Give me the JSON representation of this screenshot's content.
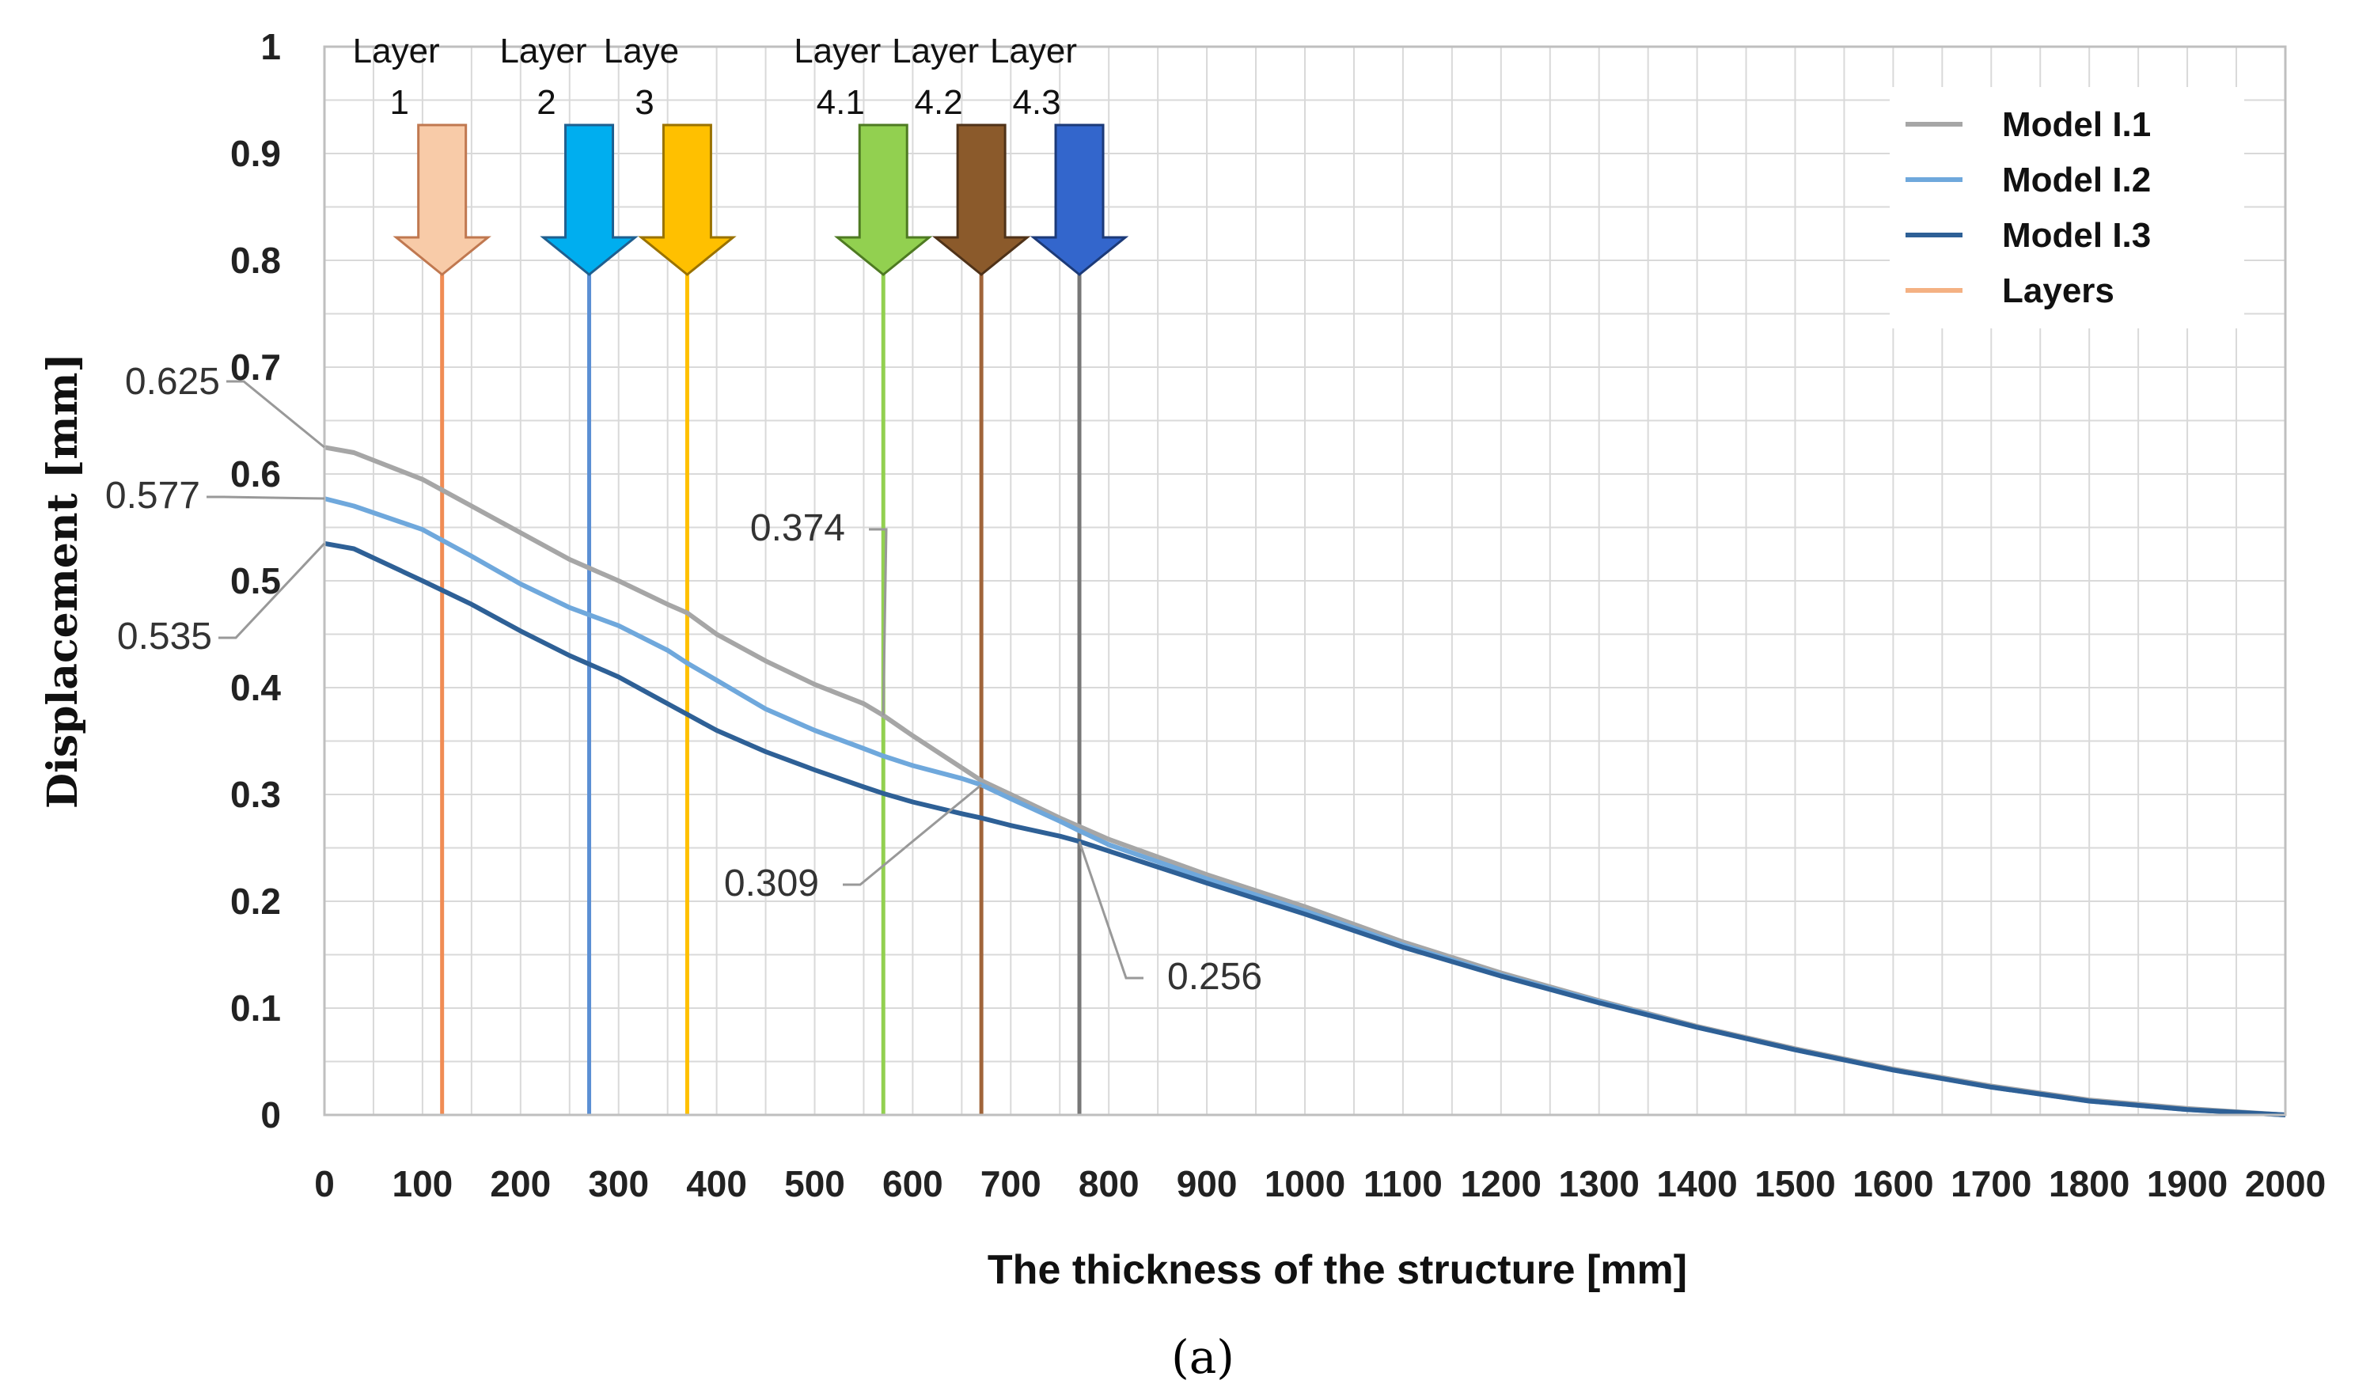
{
  "chart_data": {
    "type": "line",
    "xlabel": "The thickness of the structure  [mm]",
    "ylabel": "Displacement [mm]",
    "caption": "(a)",
    "xlim": [
      0,
      2000
    ],
    "ylim": [
      0,
      1
    ],
    "x_ticks": [
      "0",
      "100",
      "200",
      "300",
      "400",
      "500",
      "600",
      "700",
      "800",
      "900",
      "1000",
      "1100",
      "1200",
      "1300",
      "1400",
      "1500",
      "1600",
      "1700",
      "1800",
      "1900",
      "2000"
    ],
    "y_ticks": [
      "0",
      "0.1",
      "0.2",
      "0.3",
      "0.4",
      "0.5",
      "0.6",
      "0.7",
      "0.8",
      "0.9",
      "1"
    ],
    "grid": true,
    "legend_position": "top-right",
    "series": [
      {
        "name": "Model I.1",
        "color": "#a6a6a6",
        "x": [
          0,
          30,
          100,
          150,
          200,
          250,
          300,
          350,
          370,
          400,
          450,
          500,
          550,
          570,
          600,
          650,
          670,
          700,
          750,
          770,
          800,
          900,
          1000,
          1100,
          1200,
          1300,
          1400,
          1500,
          1600,
          1700,
          1800,
          1900,
          2000
        ],
        "values": [
          0.625,
          0.62,
          0.595,
          0.57,
          0.545,
          0.52,
          0.5,
          0.478,
          0.47,
          0.45,
          0.425,
          0.403,
          0.385,
          0.374,
          0.355,
          0.325,
          0.313,
          0.3,
          0.278,
          0.27,
          0.258,
          0.225,
          0.195,
          0.162,
          0.133,
          0.107,
          0.083,
          0.062,
          0.043,
          0.027,
          0.014,
          0.006,
          0.0
        ]
      },
      {
        "name": "Model I.2",
        "color": "#6fa8dc",
        "x": [
          0,
          30,
          100,
          150,
          200,
          250,
          300,
          350,
          370,
          400,
          450,
          500,
          550,
          570,
          600,
          650,
          670,
          700,
          750,
          770,
          800,
          900,
          1000,
          1100,
          1200,
          1300,
          1400,
          1500,
          1600,
          1700,
          1800,
          1900,
          2000
        ],
        "values": [
          0.577,
          0.57,
          0.548,
          0.523,
          0.497,
          0.475,
          0.458,
          0.435,
          0.423,
          0.407,
          0.38,
          0.36,
          0.343,
          0.336,
          0.327,
          0.315,
          0.309,
          0.296,
          0.275,
          0.266,
          0.253,
          0.221,
          0.191,
          0.159,
          0.131,
          0.106,
          0.082,
          0.061,
          0.042,
          0.026,
          0.013,
          0.005,
          0.0
        ]
      },
      {
        "name": "Model I.3",
        "color": "#2e6096",
        "x": [
          0,
          30,
          100,
          150,
          200,
          250,
          300,
          350,
          370,
          400,
          450,
          500,
          550,
          570,
          600,
          650,
          670,
          700,
          750,
          770,
          800,
          900,
          1000,
          1100,
          1200,
          1300,
          1400,
          1500,
          1600,
          1700,
          1800,
          1900,
          2000
        ],
        "values": [
          0.535,
          0.53,
          0.5,
          0.478,
          0.453,
          0.43,
          0.41,
          0.385,
          0.375,
          0.36,
          0.34,
          0.323,
          0.307,
          0.301,
          0.293,
          0.282,
          0.278,
          0.271,
          0.261,
          0.256,
          0.247,
          0.217,
          0.188,
          0.157,
          0.13,
          0.105,
          0.082,
          0.061,
          0.042,
          0.026,
          0.013,
          0.005,
          0.0
        ]
      }
    ],
    "layers": {
      "legend_name": "Layers",
      "legend_color": "#f4b183",
      "items": [
        {
          "label_line1": "Layer",
          "label_line2": "1",
          "x": 120,
          "line_color": "#f08c54",
          "arrow_color": "#f8cba8",
          "arrow_stroke": "#c07850"
        },
        {
          "label_line1": "Layer",
          "label_line2": "2",
          "x": 270,
          "line_color": "#5b8fd4",
          "arrow_color": "#00aeef",
          "arrow_stroke": "#1f5f8f"
        },
        {
          "label_line1": "Laye",
          "label_line2": "3",
          "x": 370,
          "line_color": "#ffc000",
          "arrow_color": "#ffc000",
          "arrow_stroke": "#9a7200"
        },
        {
          "label_line1": "Layer",
          "label_line2": "4.1",
          "x": 570,
          "line_color": "#92d050",
          "arrow_color": "#92d050",
          "arrow_stroke": "#4e7a22"
        },
        {
          "label_line1": "Layer",
          "label_line2": "4.2",
          "x": 670,
          "line_color": "#a0643a",
          "arrow_color": "#8b5a2b",
          "arrow_stroke": "#4f3218"
        },
        {
          "label_line1": "Layer",
          "label_line2": "4.3",
          "x": 770,
          "line_color": "#777777",
          "arrow_color": "#3366cc",
          "arrow_stroke": "#1c3a78"
        }
      ]
    },
    "annotations": [
      {
        "text": "0.625",
        "x": 0,
        "y": 0.625,
        "placement": "left-above"
      },
      {
        "text": "0.577",
        "x": 0,
        "y": 0.577,
        "placement": "left"
      },
      {
        "text": "0.535",
        "x": 0,
        "y": 0.535,
        "placement": "left-below"
      },
      {
        "text": "0.374",
        "x": 570,
        "y": 0.374,
        "placement": "above-left"
      },
      {
        "text": "0.309",
        "x": 670,
        "y": 0.309,
        "placement": "below-left"
      },
      {
        "text": "0.256",
        "x": 770,
        "y": 0.256,
        "placement": "below-right"
      }
    ]
  }
}
